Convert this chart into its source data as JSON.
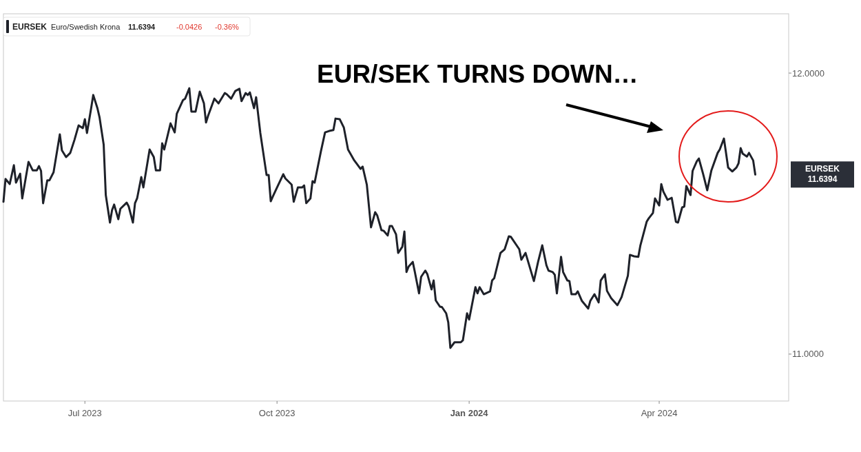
{
  "chart_data": {
    "type": "line",
    "title": "EUR/SEK TURNS DOWN…",
    "legend": "top left",
    "x": [
      "2023-05-23",
      "2023-05-24",
      "2023-05-26",
      "2023-05-28",
      "2023-05-29",
      "2023-05-31",
      "2023-06-01",
      "2023-06-04",
      "2023-06-06",
      "2023-06-08",
      "2023-06-09",
      "2023-06-10",
      "2023-06-11",
      "2023-06-13",
      "2023-06-14",
      "2023-06-16",
      "2023-06-19",
      "2023-06-20",
      "2023-06-22",
      "2023-06-24",
      "2023-06-26",
      "2023-06-28",
      "2023-06-30",
      "2023-07-01",
      "2023-07-02",
      "2023-07-04",
      "2023-07-05",
      "2023-07-07",
      "2023-07-08",
      "2023-07-10",
      "2023-07-11",
      "2023-07-13",
      "2023-07-14",
      "2023-07-15",
      "2023-07-17",
      "2023-07-18",
      "2023-07-21",
      "2023-07-22",
      "2023-07-24",
      "2023-07-25",
      "2023-07-26",
      "2023-07-28",
      "2023-07-29",
      "2023-08-01",
      "2023-08-03",
      "2023-08-04",
      "2023-08-06",
      "2023-08-07",
      "2023-08-08",
      "2023-08-11",
      "2023-08-13",
      "2023-08-14",
      "2023-08-17",
      "2023-08-18",
      "2023-08-20",
      "2023-08-21",
      "2023-08-23",
      "2023-08-25",
      "2023-08-27",
      "2023-08-28",
      "2023-08-29",
      "2023-09-01",
      "2023-09-03",
      "2023-09-06",
      "2023-09-07",
      "2023-09-09",
      "2023-09-11",
      "2023-09-13",
      "2023-09-14",
      "2023-09-16",
      "2023-09-17",
      "2023-09-18",
      "2023-09-20",
      "2023-09-21",
      "2023-09-23",
      "2023-09-26",
      "2023-09-27",
      "2023-09-28",
      "2023-09-29",
      "2023-10-01",
      "2023-10-04",
      "2023-10-05",
      "2023-10-08",
      "2023-10-09",
      "2023-10-11",
      "2023-10-13",
      "2023-10-14",
      "2023-10-15",
      "2023-10-17",
      "2023-10-18",
      "2023-10-19",
      "2023-10-22",
      "2023-10-24",
      "2023-10-26",
      "2023-10-28",
      "2023-10-29",
      "2023-10-31",
      "2023-11-02",
      "2023-11-04",
      "2023-11-07",
      "2023-11-08",
      "2023-11-10",
      "2023-11-11",
      "2023-11-13",
      "2023-11-15",
      "2023-11-17",
      "2023-11-18",
      "2023-11-20",
      "2023-11-21",
      "2023-11-23",
      "2023-11-24",
      "2023-11-25",
      "2023-11-27",
      "2023-11-28",
      "2023-11-30",
      "2023-12-01",
      "2023-12-02",
      "2023-12-03",
      "2023-12-05",
      "2023-12-06",
      "2023-12-08",
      "2023-12-09",
      "2023-12-11",
      "2023-12-12",
      "2023-12-14",
      "2023-12-15",
      "2023-12-16",
      "2023-12-18",
      "2023-12-19",
      "2023-12-21",
      "2023-12-22",
      "2023-12-23",
      "2023-12-25",
      "2023-12-26",
      "2023-12-28",
      "2023-12-29",
      "2023-12-31",
      "2024-01-01",
      "2024-01-04",
      "2024-01-05",
      "2024-01-06",
      "2024-01-08",
      "2024-01-11",
      "2024-01-12",
      "2024-01-13",
      "2024-01-16",
      "2024-01-18",
      "2024-01-20",
      "2024-01-21",
      "2024-01-25",
      "2024-01-26",
      "2024-01-28",
      "2024-02-01",
      "2024-02-03",
      "2024-02-05",
      "2024-02-07",
      "2024-02-08",
      "2024-02-10",
      "2024-02-11",
      "2024-02-12",
      "2024-02-14",
      "2024-02-15",
      "2024-02-17",
      "2024-02-18",
      "2024-02-19",
      "2024-02-21",
      "2024-02-22",
      "2024-02-24",
      "2024-02-27",
      "2024-02-28",
      "2024-03-01",
      "2024-03-03",
      "2024-03-04",
      "2024-03-06",
      "2024-03-07",
      "2024-03-09",
      "2024-03-12",
      "2024-03-14",
      "2024-03-17",
      "2024-03-18",
      "2024-03-20",
      "2024-03-22",
      "2024-03-23",
      "2024-03-26",
      "2024-03-27",
      "2024-03-29",
      "2024-03-30",
      "2024-04-01",
      "2024-04-02",
      "2024-04-03",
      "2024-04-05",
      "2024-04-07",
      "2024-04-09",
      "2024-04-10",
      "2024-04-12",
      "2024-04-13",
      "2024-04-14",
      "2024-04-16",
      "2024-04-17",
      "2024-04-19",
      "2024-04-20",
      "2024-04-22",
      "2024-04-24",
      "2024-04-26",
      "2024-04-29",
      "2024-04-30",
      "2024-05-02",
      "2024-05-04",
      "2024-05-06",
      "2024-05-08",
      "2024-05-09",
      "2024-05-10",
      "2024-05-11",
      "2024-05-13",
      "2024-05-14",
      "2024-05-16",
      "2024-05-17"
    ],
    "series": [
      {
        "name": "EURSEK",
        "color": "#1e2129",
        "values": [
          11.542,
          11.623,
          11.605,
          11.672,
          11.61,
          11.642,
          11.554,
          11.684,
          11.654,
          11.654,
          11.669,
          11.652,
          11.537,
          11.618,
          11.618,
          11.647,
          11.782,
          11.725,
          11.701,
          11.716,
          11.762,
          11.814,
          11.804,
          11.836,
          11.787,
          11.875,
          11.922,
          11.875,
          11.843,
          11.745,
          11.566,
          11.468,
          11.512,
          11.532,
          11.48,
          11.517,
          11.539,
          11.525,
          11.468,
          11.537,
          11.554,
          11.63,
          11.593,
          11.728,
          11.701,
          11.654,
          11.654,
          11.75,
          11.728,
          11.821,
          11.789,
          11.855,
          11.904,
          11.909,
          11.946,
          11.863,
          11.863,
          11.934,
          11.892,
          11.824,
          11.848,
          11.909,
          11.892,
          11.929,
          11.924,
          11.909,
          11.936,
          11.944,
          11.9,
          11.929,
          11.922,
          11.931,
          11.875,
          11.914,
          11.787,
          11.637,
          11.637,
          11.544,
          11.561,
          11.593,
          11.64,
          11.625,
          11.603,
          11.542,
          11.593,
          11.593,
          11.6,
          11.537,
          11.554,
          11.615,
          11.61,
          11.721,
          11.789,
          11.794,
          11.797,
          11.838,
          11.836,
          11.806,
          11.728,
          11.689,
          11.679,
          11.659,
          11.667,
          11.603,
          11.451,
          11.505,
          11.493,
          11.441,
          11.439,
          11.422,
          11.456,
          11.456,
          11.426,
          11.36,
          11.382,
          11.436,
          11.292,
          11.311,
          11.328,
          11.292,
          11.216,
          11.275,
          11.297,
          11.284,
          11.23,
          11.262,
          11.191,
          11.169,
          11.167,
          11.145,
          11.113,
          11.022,
          11.042,
          11.042,
          11.042,
          11.049,
          11.145,
          11.123,
          11.238,
          11.216,
          11.238,
          11.213,
          11.223,
          11.262,
          11.27,
          11.36,
          11.373,
          11.419,
          11.417,
          11.373,
          11.336,
          11.36,
          11.26,
          11.328,
          11.387,
          11.316,
          11.297,
          11.292,
          11.282,
          11.216,
          11.346,
          11.292,
          11.262,
          11.26,
          11.213,
          11.213,
          11.223,
          11.189,
          11.162,
          11.189,
          11.213,
          11.184,
          11.262,
          11.284,
          11.225,
          11.199,
          11.174,
          11.203,
          11.279,
          11.353,
          11.348,
          11.346,
          11.387,
          11.471,
          11.483,
          11.502,
          11.554,
          11.529,
          11.605,
          11.578,
          11.549,
          11.556,
          11.471,
          11.468,
          11.522,
          11.525,
          11.598,
          11.566,
          11.652,
          11.686,
          11.696,
          11.642,
          11.583,
          11.654,
          11.716,
          11.728,
          11.767,
          11.664,
          11.65,
          11.664,
          11.679,
          11.733,
          11.713,
          11.703,
          11.716,
          11.689,
          11.639
        ]
      }
    ],
    "xlim": [
      "2023-05-23",
      "2024-06-02"
    ],
    "xticks": [
      {
        "value": "2023-07-01",
        "label": "Jul 2023"
      },
      {
        "value": "2023-10-01",
        "label": "Oct 2023"
      },
      {
        "value": "2024-01-01",
        "label": "Jan 2024"
      },
      {
        "value": "2024-04-01",
        "label": "Apr 2024"
      }
    ],
    "ylim": [
      10.833,
      12.211
    ],
    "yticks": [
      {
        "value": 11,
        "label": "11.0000"
      },
      {
        "value": 12,
        "label": "12.0000"
      }
    ],
    "annotations": [
      "Euro/Swedish Krona",
      "11.6394",
      "-0.0426",
      "-0.36%",
      "EURSEK",
      "11.6394"
    ]
  }
}
